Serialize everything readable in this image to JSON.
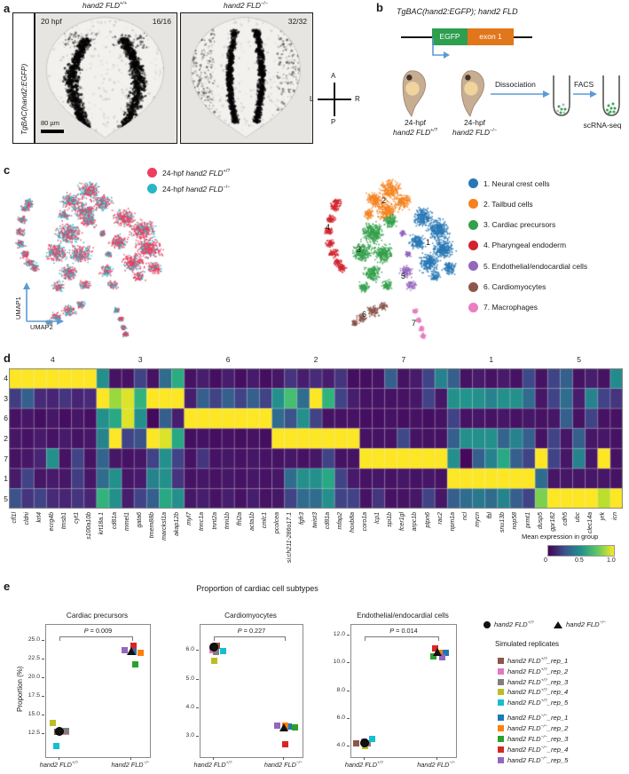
{
  "panel_a": {
    "label": "a",
    "side_label": "TgBAC(hand2:EGFP)",
    "images": [
      {
        "genotype_base": "hand2 FLD",
        "genotype_sup": "+/+",
        "stage": "20 hpf",
        "count": "16/16"
      },
      {
        "genotype_base": "hand2 FLD",
        "genotype_sup": "−/−",
        "count": "32/32"
      }
    ],
    "scale_bar": "80 µm",
    "compass": {
      "top": "A",
      "bottom": "P",
      "left": "L",
      "right": "R"
    }
  },
  "panel_b": {
    "label": "b",
    "title": "TgBAC(hand2:EGFP); hand2 FLD",
    "construct": {
      "egfp_label": "EGFP",
      "exon_label": "exon 1",
      "egfp_color": "#2e9e4f",
      "exon_color": "#e2761b"
    },
    "embryos": [
      {
        "stage": "24-hpf",
        "genotype_base": "hand2 FLD",
        "genotype_sup": "+/?"
      },
      {
        "stage": "24-hpf",
        "genotype_base": "hand2 FLD",
        "genotype_sup": "−/−"
      }
    ],
    "steps": {
      "dissociation": "Dissociation",
      "facs": "FACS",
      "scrnaseq": "scRNA-seq"
    }
  },
  "panel_c": {
    "label": "c",
    "axes": {
      "y": "UMAP1",
      "x": "UMAP2"
    },
    "genotype_legend": [
      {
        "prefix": "24-hpf ",
        "gene": "hand2 FLD",
        "sup": "+/?",
        "color": "#ee3d5e"
      },
      {
        "prefix": "24-hpf ",
        "gene": "hand2 FLD",
        "sup": "−/−",
        "color": "#29b6c6"
      }
    ],
    "clusters": [
      {
        "id": "1",
        "name": "1. Neural crest cells",
        "color": "#2878b5"
      },
      {
        "id": "2",
        "name": "2. Tailbud cells",
        "color": "#f5821e"
      },
      {
        "id": "3",
        "name": "3. Cardiac precursors",
        "color": "#33a04a"
      },
      {
        "id": "4",
        "name": "4. Pharyngeal endoderm",
        "color": "#d2232e"
      },
      {
        "id": "5",
        "name": "5. Endothelial/endocardial cells",
        "color": "#9467bd"
      },
      {
        "id": "6",
        "name": "6. Cardiomyocytes",
        "color": "#8c564b"
      },
      {
        "id": "7",
        "name": "7. Macrophages",
        "color": "#e87fc0"
      }
    ]
  },
  "panel_d": {
    "label": "d",
    "row_labels": [
      "4",
      "3",
      "6",
      "2",
      "7",
      "1",
      "5"
    ],
    "col_group_labels": [
      "4",
      "3",
      "6",
      "2",
      "7",
      "1",
      "5"
    ],
    "genes": [
      "cfl1l",
      "cldni",
      "krt4",
      "ecrg4b",
      "tmsb1",
      "cyt1",
      "s100a10b",
      "krt18a.1",
      "cd81a",
      "mmel1",
      "gata6",
      "tmem88b",
      "marcksl1a",
      "akap12b",
      "myl7",
      "tnnc1a",
      "tnnt2a",
      "tnni1b",
      "fhl2a",
      "acta1b",
      "cmlc1",
      "pcolcea",
      "si:ch211-286o17.1",
      "fgfr3",
      "twist3",
      "cd81a",
      "mfap2",
      "hoxb8a",
      "coro1a",
      "lcp1",
      "spi1b",
      "fcer1gl",
      "arpc1b",
      "ptpn6",
      "rac2",
      "npm1a",
      "ncl",
      "mycn",
      "fbl",
      "snu13b",
      "nop58",
      "prmt1",
      "dusp5",
      "gpr182",
      "cdh5",
      "ubc",
      "clec14a",
      "yrk",
      "icn"
    ],
    "chart_data": {
      "type": "heatmap",
      "colormap": "viridis",
      "rows": [
        "4",
        "3",
        "6",
        "2",
        "7",
        "1",
        "5"
      ],
      "matrix": [
        [
          1,
          1,
          1,
          1,
          1,
          1,
          1,
          0.5,
          0.05,
          0.05,
          0.2,
          0.05,
          0.35,
          0.62,
          0.05,
          0.08,
          0.04,
          0.08,
          0.04,
          0.07,
          0.04,
          0.06,
          0.15,
          0.08,
          0.12,
          0.08,
          0.15,
          0.04,
          0.04,
          0.05,
          0.3,
          0.05,
          0.07,
          0.2,
          0.45,
          0.3,
          0.05,
          0.07,
          0.05,
          0.07,
          0.05,
          0.22,
          0.05,
          0.2,
          0.3,
          0.05,
          0.08,
          0.05,
          0.48
        ],
        [
          0.18,
          0.3,
          0.12,
          0.1,
          0.15,
          0.1,
          0.12,
          1,
          0.85,
          0.95,
          0.65,
          1,
          1,
          1,
          0.08,
          0.3,
          0.2,
          0.3,
          0.2,
          0.3,
          0.2,
          0.5,
          0.7,
          0.35,
          1,
          0.65,
          0.2,
          0.08,
          0.05,
          0.05,
          0.05,
          0.05,
          0.06,
          0.2,
          0.06,
          0.5,
          0.52,
          0.5,
          0.45,
          0.5,
          0.5,
          0.35,
          0.06,
          0.2,
          0.35,
          0.08,
          0.45,
          0.2,
          0.15
        ],
        [
          0.05,
          0.06,
          0.04,
          0.06,
          0.04,
          0.06,
          0.04,
          0.5,
          0.6,
          0.95,
          0.5,
          0.02,
          0.3,
          0.08,
          1,
          1,
          1,
          1,
          1,
          1,
          1,
          0.35,
          0.25,
          0.5,
          0.2,
          0.05,
          0.05,
          0.05,
          0.04,
          0.04,
          0.05,
          0.04,
          0.05,
          0.04,
          0.05,
          0.2,
          0.05,
          0.06,
          0.05,
          0.06,
          0.05,
          0.06,
          0.05,
          0.06,
          0.3,
          0.05,
          0.2,
          0.05,
          0.05
        ],
        [
          0.06,
          0.05,
          0.07,
          0.05,
          0.07,
          0.05,
          0.06,
          0.45,
          1,
          0.2,
          0.25,
          1,
          0.95,
          0.6,
          0.04,
          0.05,
          0.04,
          0.05,
          0.04,
          0.05,
          0.04,
          1,
          1,
          1,
          1,
          1,
          1,
          1,
          0.05,
          0.05,
          0.05,
          0.22,
          0.05,
          0.05,
          0.05,
          0.3,
          0.5,
          0.5,
          0.5,
          0.32,
          0.45,
          0.3,
          0.05,
          0.2,
          0.06,
          0.3,
          0.06,
          0.06,
          0.05
        ],
        [
          0.05,
          0.06,
          0.1,
          0.5,
          0.05,
          0.2,
          0.05,
          0.32,
          0.06,
          0.05,
          0.06,
          0.2,
          0.5,
          0.2,
          0.05,
          0.15,
          0.05,
          0.06,
          0.05,
          0.06,
          0.05,
          0.05,
          0.06,
          0.05,
          0.06,
          0.2,
          0.05,
          0.05,
          1,
          1,
          1,
          1,
          1,
          1,
          1,
          0.5,
          0.02,
          0.3,
          0.45,
          0.6,
          0.3,
          0.2,
          1,
          0.2,
          0.06,
          0.45,
          0.06,
          1,
          0.05
        ],
        [
          0.07,
          0.2,
          0.06,
          0.07,
          0.06,
          0.18,
          0.06,
          0.35,
          0.5,
          0.06,
          0.07,
          0.45,
          0.5,
          0.15,
          0.05,
          0.06,
          0.05,
          0.06,
          0.05,
          0.06,
          0.05,
          0.06,
          0.35,
          0.5,
          0.5,
          0.6,
          0.2,
          0.07,
          0.05,
          0.06,
          0.05,
          0.06,
          0.05,
          0.06,
          0.05,
          1,
          1,
          1,
          1,
          1,
          1,
          1,
          0.35,
          0.06,
          0.06,
          0.06,
          0.06,
          0.06,
          0.05
        ],
        [
          0.25,
          0.15,
          0.2,
          0.12,
          0.1,
          0.15,
          0.1,
          0.65,
          0.5,
          0.08,
          0.2,
          0.3,
          0.6,
          0.5,
          0.06,
          0.08,
          0.05,
          0.08,
          0.05,
          0.08,
          0.05,
          0.06,
          0.2,
          0.35,
          0.35,
          0.5,
          0.2,
          0.2,
          0.05,
          0.15,
          0.05,
          0.05,
          0.06,
          0.2,
          0.06,
          0.3,
          0.35,
          0.4,
          0.35,
          0.45,
          0.3,
          0.2,
          0.8,
          1,
          1,
          1,
          1,
          0.9,
          1
        ]
      ]
    },
    "colorbar": {
      "label": "Mean expression in group",
      "ticks": [
        "0",
        "0.5",
        "1.0"
      ]
    }
  },
  "panel_e": {
    "label": "e",
    "title": "Proportion of cardiac cell subtypes",
    "ylabel": "Proportion (%)",
    "x_categories": [
      {
        "base": "hand2 FLD",
        "sup": "+/?"
      },
      {
        "base": "hand2 FLD",
        "sup": "−/−"
      }
    ],
    "chart_data": [
      {
        "type": "scatter",
        "title": "Cardiac precursors",
        "p_stat": "P",
        "p_rest": " = 0.009",
        "ylim": [
          9.4,
          27.1
        ],
        "yticks": [
          25.0,
          22.5,
          20.0,
          17.5,
          15.0,
          12.5
        ],
        "points": [
          {
            "rep": "+/?_rep_1",
            "color": "#8c564b",
            "group": 0,
            "value": 12.8,
            "dx": -3
          },
          {
            "rep": "+/?_rep_2",
            "color": "#e377c2",
            "group": 0,
            "value": 12.75,
            "dx": 7
          },
          {
            "rep": "+/?_rep_3",
            "color": "#7f7f7f",
            "group": 0,
            "value": 12.95,
            "dx": 7
          },
          {
            "rep": "+/?_rep_4",
            "color": "#bcbd22",
            "group": 0,
            "value": 14.0,
            "dx": -8
          },
          {
            "rep": "+/?_rep_5",
            "color": "#17becf",
            "group": 0,
            "value": 10.9,
            "dx": -4
          },
          {
            "rep": "−/−_rep_1",
            "color": "#1f77b4",
            "group": 1,
            "value": 23.5,
            "dx": 3
          },
          {
            "rep": "−/−_rep_2",
            "color": "#ff7f0e",
            "group": 1,
            "value": 23.4,
            "dx": 11
          },
          {
            "rep": "−/−_rep_3",
            "color": "#2ca02c",
            "group": 1,
            "value": 21.85,
            "dx": 5
          },
          {
            "rep": "−/−_rep_4",
            "color": "#d62728",
            "group": 1,
            "value": 24.25,
            "dx": 3
          },
          {
            "rep": "−/−_rep_5",
            "color": "#9467bd",
            "group": 1,
            "value": 23.75,
            "dx": -7
          }
        ],
        "means": [
          {
            "marker": "circle",
            "group": 0,
            "value": 12.8
          },
          {
            "marker": "triangle",
            "group": 1,
            "value": 23.5
          }
        ]
      },
      {
        "type": "scatter",
        "title": "Cardiomyocytes",
        "p_stat": "P",
        "p_rest": " = 0.227",
        "ylim": [
          2.3,
          6.9
        ],
        "yticks": [
          6.0,
          5.0,
          4.0,
          3.0
        ],
        "points": [
          {
            "rep": "+/?_rep_1",
            "color": "#8c564b",
            "group": 0,
            "value": 6.18,
            "dx": 4
          },
          {
            "rep": "+/?_rep_2",
            "color": "#e377c2",
            "group": 0,
            "value": 6.02,
            "dx": -1
          },
          {
            "rep": "+/?_rep_3",
            "color": "#7f7f7f",
            "group": 0,
            "value": 5.95,
            "dx": 3
          },
          {
            "rep": "+/?_rep_4",
            "color": "#bcbd22",
            "group": 0,
            "value": 5.65,
            "dx": 1
          },
          {
            "rep": "+/?_rep_5",
            "color": "#17becf",
            "group": 0,
            "value": 5.98,
            "dx": 11
          },
          {
            "rep": "−/−_rep_1",
            "color": "#1f77b4",
            "group": 1,
            "value": 3.36,
            "dx": 5
          },
          {
            "rep": "−/−_rep_2",
            "color": "#ff7f0e",
            "group": 1,
            "value": 3.4,
            "dx": 1
          },
          {
            "rep": "−/−_rep_3",
            "color": "#2ca02c",
            "group": 1,
            "value": 3.33,
            "dx": 12
          },
          {
            "rep": "−/−_rep_4",
            "color": "#d62728",
            "group": 1,
            "value": 2.75,
            "dx": 1
          },
          {
            "rep": "−/−_rep_5",
            "color": "#9467bd",
            "group": 1,
            "value": 3.4,
            "dx": -8
          }
        ],
        "means": [
          {
            "marker": "circle",
            "group": 0,
            "value": 6.12
          },
          {
            "marker": "triangle",
            "group": 1,
            "value": 3.32
          }
        ]
      },
      {
        "type": "scatter",
        "title": "Endothelial/endocardial cells",
        "p_stat": "P",
        "p_rest": " = 0.014",
        "ylim": [
          3.2,
          12.8
        ],
        "yticks": [
          12.0,
          10.0,
          8.0,
          6.0,
          4.0
        ],
        "points": [
          {
            "rep": "+/?_rep_1",
            "color": "#8c564b",
            "group": 0,
            "value": 4.2,
            "dx": -10
          },
          {
            "rep": "+/?_rep_2",
            "color": "#e377c2",
            "group": 0,
            "value": 4.3,
            "dx": -1
          },
          {
            "rep": "+/?_rep_3",
            "color": "#7f7f7f",
            "group": 0,
            "value": 4.18,
            "dx": 3
          },
          {
            "rep": "+/?_rep_4",
            "color": "#bcbd22",
            "group": 0,
            "value": 4.0,
            "dx": 0
          },
          {
            "rep": "+/?_rep_5",
            "color": "#17becf",
            "group": 0,
            "value": 4.55,
            "dx": 8
          },
          {
            "rep": "−/−_rep_1",
            "color": "#1f77b4",
            "group": 1,
            "value": 10.75,
            "dx": 10
          },
          {
            "rep": "−/−_rep_2",
            "color": "#ff7f0e",
            "group": 1,
            "value": 10.8,
            "dx": 3
          },
          {
            "rep": "−/−_rep_3",
            "color": "#2ca02c",
            "group": 1,
            "value": 10.5,
            "dx": -4
          },
          {
            "rep": "−/−_rep_4",
            "color": "#d62728",
            "group": 1,
            "value": 11.1,
            "dx": -2
          },
          {
            "rep": "−/−_rep_5",
            "color": "#9467bd",
            "group": 1,
            "value": 10.45,
            "dx": 6
          }
        ],
        "means": [
          {
            "marker": "circle",
            "group": 0,
            "value": 4.25
          },
          {
            "marker": "triangle",
            "group": 1,
            "value": 10.8
          }
        ]
      }
    ],
    "legend": {
      "mean_markers": [
        {
          "marker": "circle",
          "base": "hand2 FLD",
          "sup": "+/?"
        },
        {
          "marker": "triangle",
          "base": "hand2 FLD",
          "sup": "−/−"
        }
      ],
      "replicates_title": "Simulated replicates",
      "replicates": [
        {
          "color": "#8c564b",
          "base": "hand2 FLD",
          "sup": "+/?",
          "suffix": "_rep_1"
        },
        {
          "color": "#e377c2",
          "base": "hand2 FLD",
          "sup": "+/?",
          "suffix": "_rep_2"
        },
        {
          "color": "#7f7f7f",
          "base": "hand2 FLD",
          "sup": "+/?",
          "suffix": "_rep_3"
        },
        {
          "color": "#bcbd22",
          "base": "hand2 FLD",
          "sup": "+/?",
          "suffix": "_rep_4"
        },
        {
          "color": "#17becf",
          "base": "hand2 FLD",
          "sup": "+/?",
          "suffix": "_rep_5"
        },
        {
          "color": "#1f77b4",
          "base": "hand2 FLD",
          "sup": "−/−",
          "suffix": "_rep_1"
        },
        {
          "color": "#ff7f0e",
          "base": "hand2 FLD",
          "sup": "−/−",
          "suffix": "_rep_2"
        },
        {
          "color": "#2ca02c",
          "base": "hand2 FLD",
          "sup": "−/−",
          "suffix": "_rep_3"
        },
        {
          "color": "#d62728",
          "base": "hand2 FLD",
          "sup": "−/−",
          "suffix": "_rep_4"
        },
        {
          "color": "#9467bd",
          "base": "hand2 FLD",
          "sup": "−/−",
          "suffix": "_rep_5"
        }
      ]
    }
  }
}
